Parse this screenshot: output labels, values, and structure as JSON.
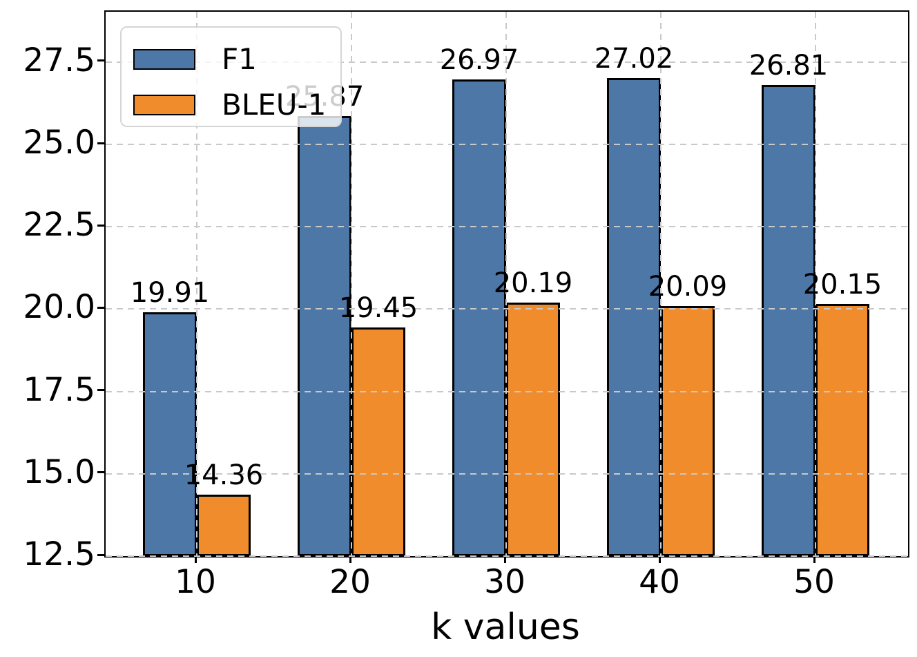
{
  "chart_data": {
    "type": "bar",
    "title": "",
    "xlabel": "k values",
    "ylabel": "",
    "categories": [
      "10",
      "20",
      "30",
      "40",
      "50"
    ],
    "series": [
      {
        "name": "F1",
        "color": "#4d77a7",
        "values": [
          19.91,
          25.87,
          26.97,
          27.02,
          26.81
        ]
      },
      {
        "name": "BLEU-1",
        "color": "#f18c2d",
        "values": [
          14.36,
          19.45,
          20.19,
          20.09,
          20.15
        ]
      }
    ],
    "bar_value_labels": {
      "F1": [
        "19.91",
        "25.87",
        "26.97",
        "27.02",
        "26.81"
      ],
      "BLEU-1": [
        "14.36",
        "19.45",
        "20.19",
        "20.09",
        "20.15"
      ]
    },
    "ylim": [
      12.5,
      29.03
    ],
    "yticks": [
      "12.5",
      "15.0",
      "17.5",
      "20.0",
      "22.5",
      "25.0",
      "27.5"
    ],
    "ytick_values": [
      12.5,
      15.0,
      17.5,
      20.0,
      22.5,
      25.0,
      27.5
    ],
    "grid": "dashed gray, both axes, drawn above bars",
    "bar_edge_color": "#000000",
    "gridline_color": "#c9c9c9",
    "legend": {
      "position": "upper left",
      "entries": [
        "F1",
        "BLEU-1"
      ],
      "background": "rgba(255,255,255,0.8)",
      "border_color": "#d5d5d5"
    }
  }
}
